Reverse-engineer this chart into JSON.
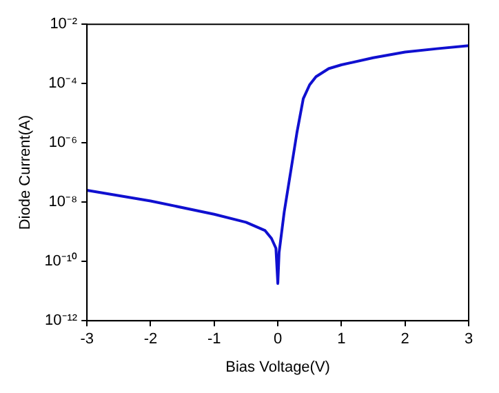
{
  "chart_data": {
    "type": "line",
    "xlabel": "Bias Voltage(V)",
    "ylabel": "Diode Current(A)",
    "log": "y",
    "grid": false,
    "legend": false,
    "marker": "none",
    "line_style": "solid",
    "x": [
      -3,
      -2,
      -1,
      -0.5,
      -0.2,
      -0.1,
      -0.03,
      0,
      0.02,
      0.1,
      0.2,
      0.3,
      0.4,
      0.5,
      0.6,
      0.8,
      1,
      1.5,
      2,
      2.5,
      3
    ],
    "series": [
      {
        "color": "#1010d0",
        "values": [
          2.5e-08,
          1.1e-08,
          3.9e-09,
          2.1e-09,
          1.1e-09,
          6e-10,
          2.8e-10,
          1.8e-11,
          2e-10,
          4.6e-09,
          1e-07,
          2.2e-06,
          3.1e-05,
          9.1e-05,
          0.00017,
          0.00032,
          0.00043,
          0.00074,
          0.00115,
          0.0015,
          0.0019
        ]
      }
    ],
    "xlim": [
      -3,
      3
    ],
    "xticks": [
      -3,
      -2,
      -1,
      0,
      1,
      2,
      3
    ],
    "ylim": [
      1e-12,
      0.01
    ],
    "yticks": [
      {
        "value": 1e-12,
        "label": "10⁻¹²"
      },
      {
        "value": 1e-10,
        "label": "10⁻¹⁰"
      },
      {
        "value": 1e-08,
        "label": "10⁻⁸"
      },
      {
        "value": 1e-06,
        "label": "10⁻⁶"
      },
      {
        "value": 0.0001,
        "label": "10⁻⁴"
      },
      {
        "value": 0.01,
        "label": "10⁻²"
      }
    ]
  }
}
